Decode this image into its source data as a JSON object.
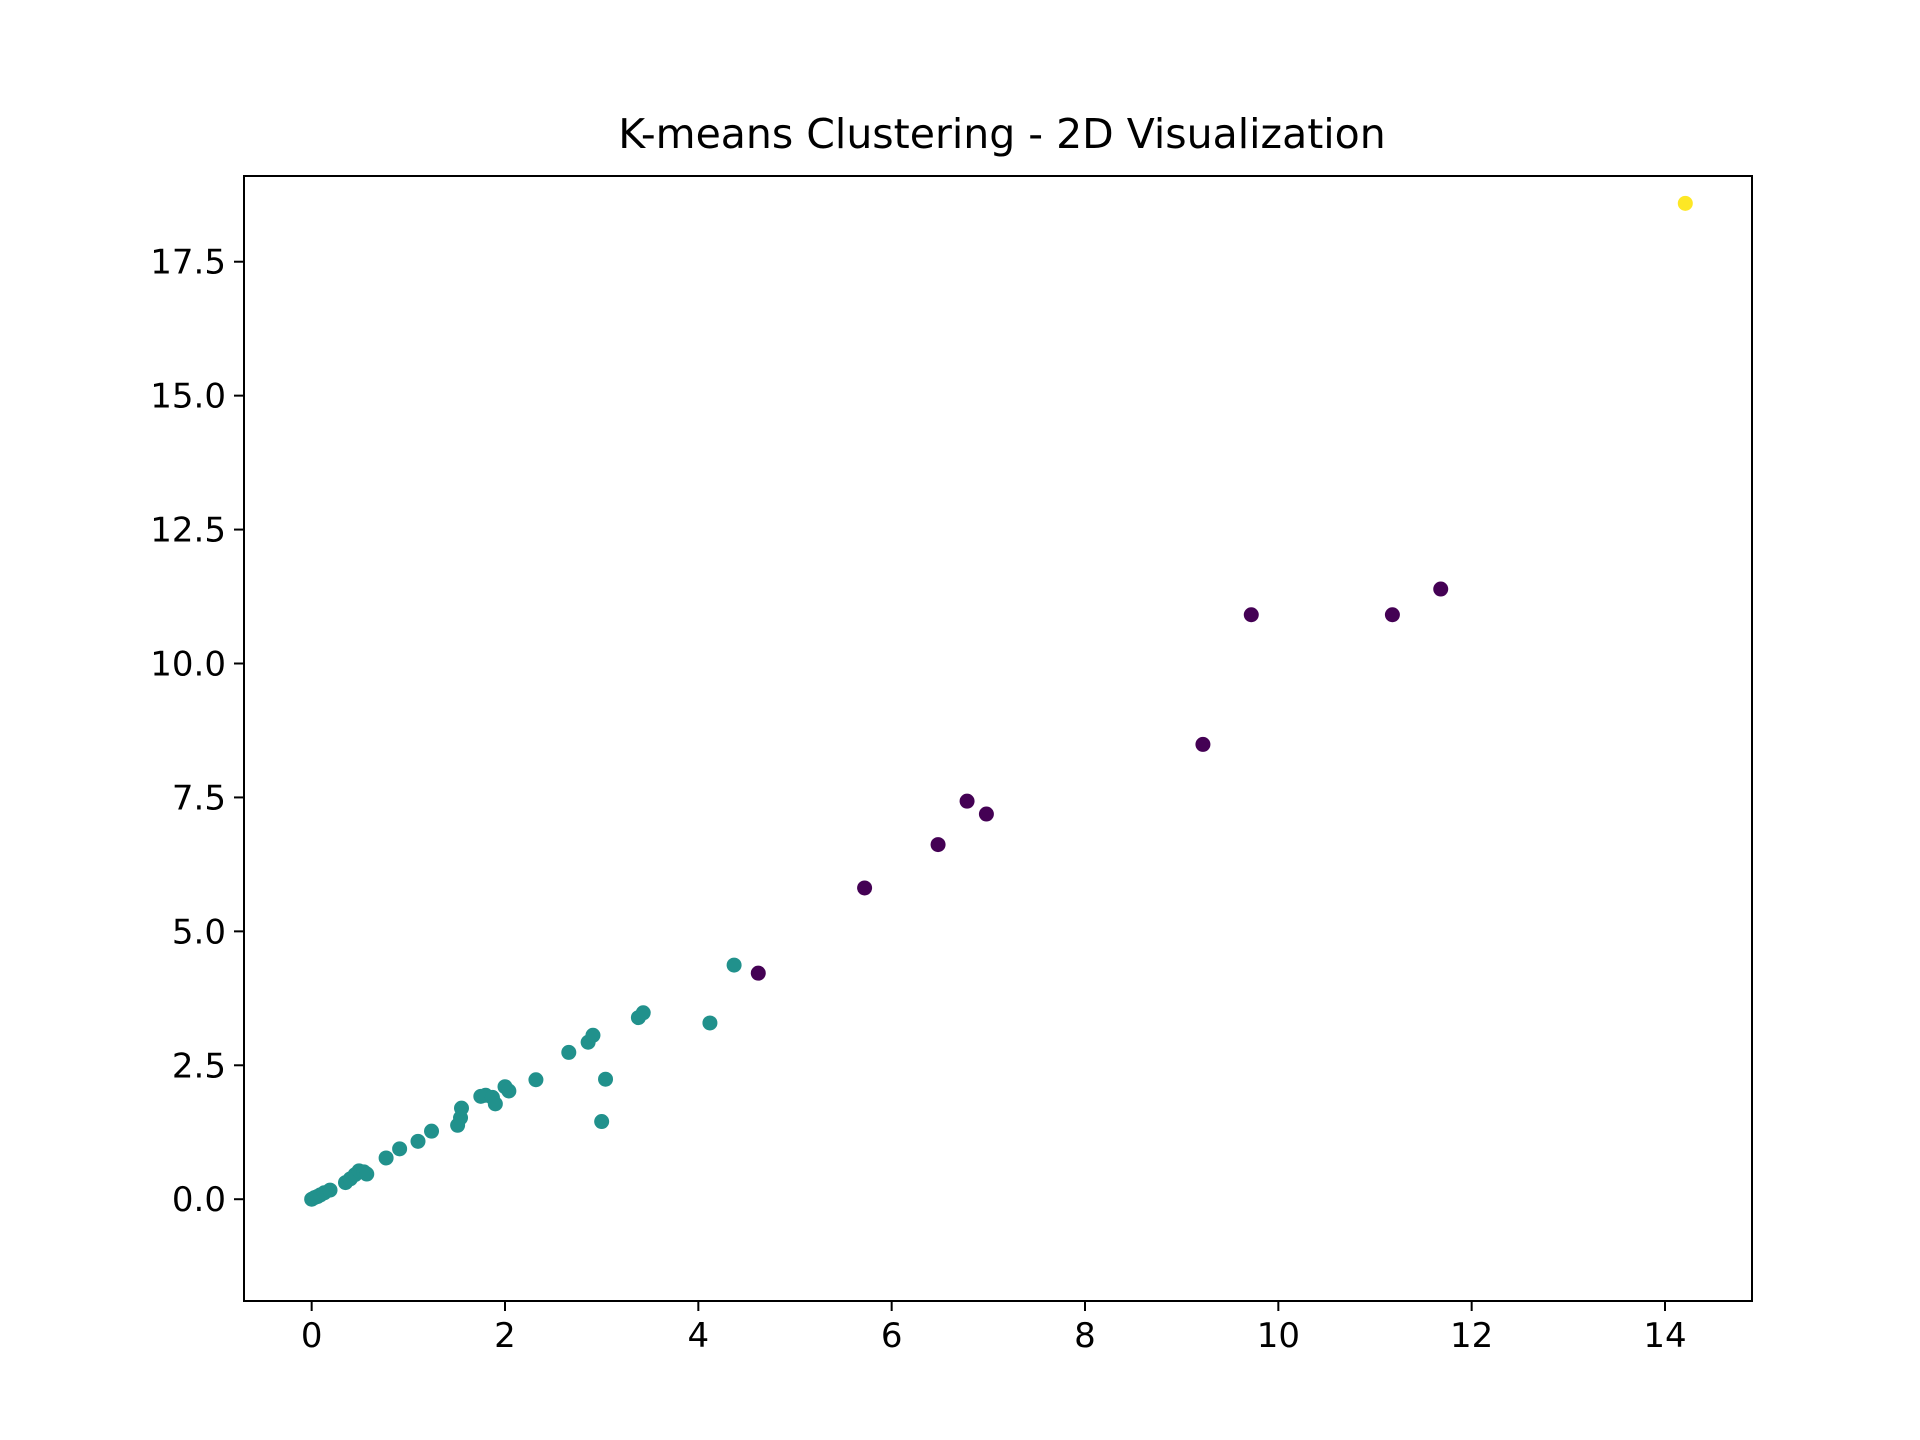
{
  "chart_data": {
    "type": "scatter",
    "title": "K-means Clustering - 2D Visualization",
    "xlabel": "",
    "ylabel": "",
    "xlim": [
      -0.7,
      14.9
    ],
    "ylim": [
      -1.9,
      19.1
    ],
    "xticks": [
      0,
      2,
      4,
      6,
      8,
      10,
      12,
      14
    ],
    "xtick_labels": [
      "0",
      "2",
      "4",
      "6",
      "8",
      "10",
      "12",
      "14"
    ],
    "yticks": [
      0,
      2.5,
      5,
      7.5,
      10,
      12.5,
      15,
      17.5
    ],
    "ytick_labels": [
      "0.0",
      "2.5",
      "5.0",
      "7.5",
      "10.0",
      "12.5",
      "15.0",
      "17.5"
    ],
    "grid": false,
    "legend": "none",
    "cluster_colors": [
      "#440154",
      "#21918c",
      "#fde725"
    ],
    "series": [
      {
        "cluster": 0,
        "color": "#440154",
        "points": [
          [
            4.62,
            4.22
          ],
          [
            5.72,
            5.81
          ],
          [
            6.48,
            6.62
          ],
          [
            6.78,
            7.43
          ],
          [
            6.98,
            7.19
          ],
          [
            9.22,
            8.49
          ],
          [
            9.72,
            10.91
          ],
          [
            11.18,
            10.91
          ],
          [
            11.68,
            11.39
          ]
        ]
      },
      {
        "cluster": 1,
        "color": "#21918c",
        "points": [
          [
            0.0,
            0.0
          ],
          [
            0.03,
            0.03
          ],
          [
            0.06,
            0.05
          ],
          [
            0.09,
            0.08
          ],
          [
            0.13,
            0.12
          ],
          [
            0.19,
            0.17
          ],
          [
            0.35,
            0.31
          ],
          [
            0.4,
            0.38
          ],
          [
            0.45,
            0.46
          ],
          [
            0.49,
            0.53
          ],
          [
            0.54,
            0.51
          ],
          [
            0.57,
            0.47
          ],
          [
            0.77,
            0.77
          ],
          [
            0.91,
            0.94
          ],
          [
            1.1,
            1.08
          ],
          [
            1.24,
            1.27
          ],
          [
            1.51,
            1.38
          ],
          [
            1.54,
            1.52
          ],
          [
            1.55,
            1.7
          ],
          [
            1.75,
            1.92
          ],
          [
            1.8,
            1.94
          ],
          [
            1.87,
            1.9
          ],
          [
            1.9,
            1.78
          ],
          [
            2.0,
            2.1
          ],
          [
            2.04,
            2.02
          ],
          [
            2.32,
            2.23
          ],
          [
            2.66,
            2.74
          ],
          [
            2.86,
            2.93
          ],
          [
            2.91,
            3.06
          ],
          [
            3.0,
            1.45
          ],
          [
            3.04,
            2.24
          ],
          [
            3.38,
            3.39
          ],
          [
            3.43,
            3.48
          ],
          [
            4.12,
            3.29
          ],
          [
            4.37,
            4.37
          ]
        ]
      },
      {
        "cluster": 2,
        "color": "#fde725",
        "points": [
          [
            14.21,
            18.59
          ]
        ]
      }
    ]
  }
}
